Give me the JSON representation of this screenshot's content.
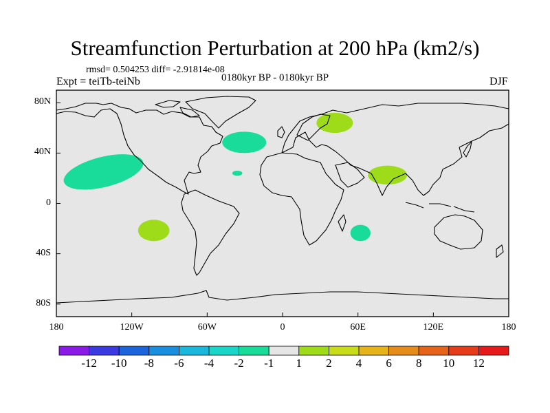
{
  "title": "Streamfunction Perturbation at 200 hPa (km2/s)",
  "stats": "rmsd= 0.504253 diff= -2.91814e-08",
  "experiment": "Expt = teiTb-teiNb",
  "period": "0180kyr BP - 0180kyr BP",
  "season": "DJF",
  "background_color": "#e6e6e6",
  "lat_axis": [
    "80N",
    "40N",
    "0",
    "40S",
    "80S"
  ],
  "lon_axis": [
    "180",
    "120W",
    "60W",
    "0",
    "60E",
    "120E",
    "180"
  ],
  "legend": {
    "labels": [
      "-12",
      "-10",
      "-8",
      "-6",
      "-4",
      "-2",
      "-1",
      "1",
      "2",
      "4",
      "6",
      "8",
      "10",
      "12"
    ],
    "colors": [
      "#8b1ae6",
      "#3a3ae0",
      "#1c64dc",
      "#1a8fe0",
      "#1ab8dc",
      "#1ad6c8",
      "#1adc9a",
      "#e6e6e6",
      "#9edc1a",
      "#c8dc1a",
      "#e6b41a",
      "#e68c1a",
      "#e6641a",
      "#e63c1a",
      "#e61a1a"
    ]
  },
  "chart_data": {
    "type": "contour-map",
    "projection": "cylindrical-equidistant",
    "lon_range": [
      -180,
      180
    ],
    "lat_range": [
      -90,
      90
    ],
    "contour_levels": [
      -12,
      -10,
      -8,
      -6,
      -4,
      -2,
      -1,
      1,
      2,
      4,
      6,
      8,
      10,
      12
    ],
    "anomalies": [
      {
        "name": "north-pacific-negative",
        "bin": "-2 to -1",
        "lon": [
          -175,
          -110
        ],
        "lat": [
          13,
          37
        ]
      },
      {
        "name": "north-atlantic-negative",
        "bin": "-2 to -1",
        "lon": [
          -48,
          -13
        ],
        "lat": [
          40,
          57
        ]
      },
      {
        "name": "tropical-atlantic-negative",
        "bin": "-2 to -1",
        "lon": [
          -40,
          -32
        ],
        "lat": [
          22,
          26
        ]
      },
      {
        "name": "southern-indian-negative",
        "bin": "-2 to -1",
        "lon": [
          54,
          70
        ],
        "lat": [
          -30,
          -17
        ]
      },
      {
        "name": "scandinavia-positive",
        "bin": "1 to 2",
        "lon": [
          27,
          56
        ],
        "lat": [
          56,
          72
        ]
      },
      {
        "name": "south-asia-positive",
        "bin": "1 to 2",
        "lon": [
          68,
          99
        ],
        "lat": [
          15,
          30
        ]
      },
      {
        "name": "south-pacific-positive",
        "bin": "1 to 2",
        "lon": [
          -115,
          -90
        ],
        "lat": [
          -30,
          -13
        ]
      }
    ]
  }
}
